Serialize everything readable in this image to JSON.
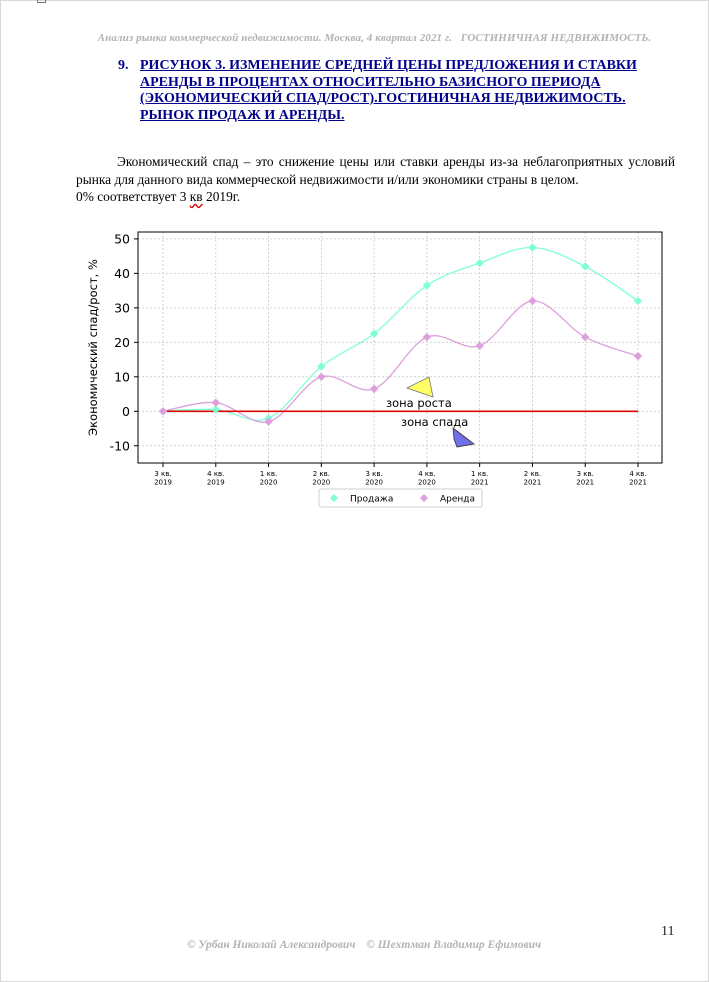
{
  "header": {
    "left": "Анализ рынка коммерческой недвижимости.  Москва, 4 квартал 2021 г.",
    "right": "ГОСТИНИЧНАЯ НЕДВИЖИМОСТЬ."
  },
  "heading": {
    "number": "9.",
    "title": "РИСУНОК 3. ИЗМЕНЕНИЕ СРЕДНЕЙ ЦЕНЫ ПРЕДЛОЖЕНИЯ И СТАВКИ АРЕНДЫ В ПРОЦЕНТАХ ОТНОСИТЕЛЬНО БАЗИСНОГО ПЕРИОДА (ЭКОНОМИЧЕСКИЙ СПАД/РОСТ).ГОСТИНИЧНАЯ НЕДВИЖИМОСТЬ. РЫНОК ПРОДАЖ И АРЕНДЫ."
  },
  "paragraph": {
    "line1": "Экономический спад – это снижение цены или ставки аренды из-за неблагоприятных условий рынка для данного вида коммерческой недвижимости и/или экономики страны в целом.",
    "line2_start": "0% соответствует 3",
    "line2_underlined": "кв",
    "line2_end": "2019г."
  },
  "chart_data": {
    "type": "line",
    "categories": [
      "3 кв. 2019",
      "4 кв. 2019",
      "1 кв. 2020",
      "2 кв. 2020",
      "3 кв. 2020",
      "4 кв. 2020",
      "1 кв. 2021",
      "2 кв. 2021",
      "3 кв. 2021",
      "4 кв. 2021"
    ],
    "category_lines": [
      [
        "3 кв.",
        "2019"
      ],
      [
        "4 кв.",
        "2019"
      ],
      [
        "1 кв.",
        "2020"
      ],
      [
        "2 кв.",
        "2020"
      ],
      [
        "3 кв.",
        "2020"
      ],
      [
        "4 кв.",
        "2020"
      ],
      [
        "1 кв.",
        "2021"
      ],
      [
        "2 кв.",
        "2021"
      ],
      [
        "3 кв.",
        "2021"
      ],
      [
        "4 кв.",
        "2021"
      ]
    ],
    "series": [
      {
        "name": "Продажа",
        "values": [
          0,
          0.5,
          -2,
          13,
          22.5,
          36.5,
          43,
          47.5,
          42,
          32
        ],
        "color": "#7fffd4",
        "marker": "diamond"
      },
      {
        "name": "Аренда",
        "values": [
          0,
          2.5,
          -3,
          10,
          6.5,
          21.5,
          19,
          32,
          21.5,
          16
        ],
        "color": "#dda0dd",
        "marker": "diamond"
      }
    ],
    "ylabel": "Экономический спад/рост, %",
    "xlabel": "",
    "ylim": [
      -15,
      52
    ],
    "yticks": [
      -10,
      0,
      10,
      20,
      30,
      40,
      50
    ],
    "baseline": {
      "value": 0,
      "color": "#e00000"
    },
    "grid": true,
    "legend_position": "bottom",
    "annotations": [
      {
        "text": "зона роста",
        "arrow_color": "#ffff66"
      },
      {
        "text": "зона спада",
        "arrow_color": "#7070e8"
      }
    ]
  },
  "footer": {
    "author1": "© Урбан Николай Александрович",
    "author2": "© Шехтман Владимир Ефимович"
  },
  "page_number": "11"
}
